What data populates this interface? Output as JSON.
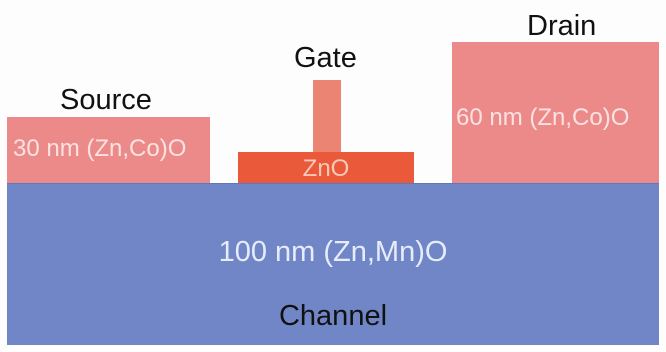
{
  "labels": {
    "source": "Source",
    "gate": "Gate",
    "drain": "Drain",
    "channel": "Channel"
  },
  "layers": {
    "source_contact": "30 nm (Zn,Co)O",
    "drain_contact": "60 nm (Zn,Co)O",
    "gate_oxide": "ZnO",
    "channel_layer": "100 nm (Zn,Mn)O"
  },
  "colors": {
    "channel": "#7086c7",
    "contact": "#ec8a89",
    "gate_oxide": "#ea5a3a",
    "gate_stem": "#ec8474"
  }
}
